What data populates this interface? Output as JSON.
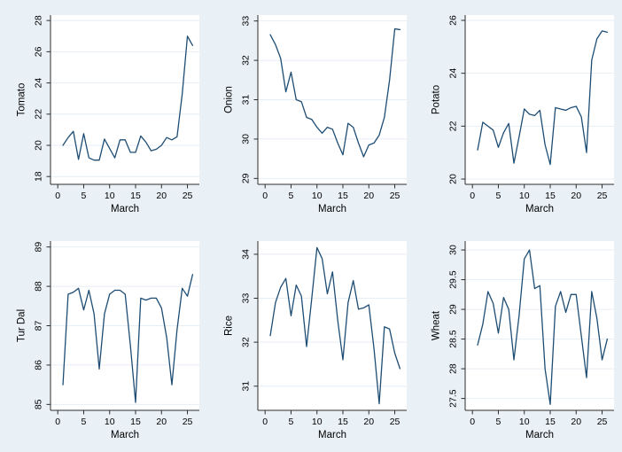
{
  "style": {
    "page_bg": "#e9f0f6",
    "plot_bg": "#ffffff",
    "grid_color": "#e7eef4",
    "line_color": "#1e4d74",
    "axis_color": "#2e2e2e",
    "text_color": "#000000"
  },
  "chart_data": [
    {
      "type": "line",
      "title": "",
      "ylabel": "Tomato",
      "xlabel": "March",
      "legend": "none",
      "grid": "horizontal",
      "x": [
        1,
        2,
        3,
        4,
        5,
        6,
        7,
        8,
        9,
        10,
        11,
        12,
        13,
        14,
        15,
        16,
        17,
        18,
        19,
        20,
        21,
        22,
        23,
        24,
        25,
        26
      ],
      "values": [
        20.0,
        20.5,
        20.9,
        19.1,
        20.75,
        19.2,
        19.05,
        19.05,
        20.4,
        19.8,
        19.2,
        20.35,
        20.35,
        19.55,
        19.55,
        20.6,
        20.2,
        19.65,
        19.75,
        20.0,
        20.5,
        20.35,
        20.55,
        23.3,
        27.0,
        26.4
      ],
      "yticks": [
        18,
        20,
        22,
        24,
        26,
        28
      ],
      "xticks": [
        0,
        5,
        10,
        15,
        20,
        25
      ],
      "ylim": [
        17.5,
        28.35
      ],
      "xlim": [
        -1.4,
        27.3
      ]
    },
    {
      "type": "line",
      "title": "",
      "ylabel": "Onion",
      "xlabel": "March",
      "legend": "none",
      "grid": "horizontal",
      "x": [
        1,
        2,
        3,
        4,
        5,
        6,
        7,
        8,
        9,
        10,
        11,
        12,
        13,
        14,
        15,
        16,
        17,
        18,
        19,
        20,
        21,
        22,
        23,
        24,
        25,
        26
      ],
      "values": [
        32.65,
        32.4,
        32.05,
        31.2,
        31.7,
        31.0,
        30.95,
        30.55,
        30.5,
        30.3,
        30.15,
        30.3,
        30.25,
        29.9,
        29.6,
        30.4,
        30.3,
        29.9,
        29.55,
        29.85,
        29.9,
        30.1,
        30.55,
        31.5,
        32.8,
        32.78
      ],
      "yticks": [
        29,
        30,
        31,
        32,
        33
      ],
      "xticks": [
        0,
        5,
        10,
        15,
        20,
        25
      ],
      "ylim": [
        28.85,
        33.15
      ],
      "xlim": [
        -1.4,
        27.3
      ]
    },
    {
      "type": "line",
      "title": "",
      "ylabel": "Potato",
      "xlabel": "March",
      "legend": "none",
      "grid": "horizontal",
      "x": [
        1,
        2,
        3,
        4,
        5,
        6,
        7,
        8,
        9,
        10,
        11,
        12,
        13,
        14,
        15,
        16,
        17,
        18,
        19,
        20,
        21,
        22,
        23,
        24,
        25,
        26
      ],
      "values": [
        21.1,
        22.15,
        22.0,
        21.85,
        21.2,
        21.75,
        22.1,
        20.6,
        21.6,
        22.65,
        22.45,
        22.4,
        22.6,
        21.3,
        20.55,
        22.7,
        22.65,
        22.6,
        22.7,
        22.75,
        22.35,
        21.0,
        24.5,
        25.3,
        25.6,
        25.55
      ],
      "yticks": [
        20,
        22,
        24,
        26
      ],
      "xticks": [
        0,
        5,
        10,
        15,
        20,
        25
      ],
      "ylim": [
        19.8,
        26.2
      ],
      "xlim": [
        -1.4,
        27.3
      ]
    },
    {
      "type": "line",
      "title": "",
      "ylabel": "Tur Dal",
      "xlabel": "March",
      "legend": "none",
      "grid": "horizontal",
      "x": [
        1,
        2,
        3,
        4,
        5,
        6,
        7,
        8,
        9,
        10,
        11,
        12,
        13,
        14,
        15,
        16,
        17,
        18,
        19,
        20,
        21,
        22,
        23,
        24,
        25,
        26
      ],
      "values": [
        85.5,
        87.8,
        87.85,
        87.95,
        87.4,
        87.9,
        87.3,
        85.9,
        87.3,
        87.8,
        87.9,
        87.9,
        87.8,
        86.5,
        85.05,
        87.7,
        87.65,
        87.7,
        87.7,
        87.45,
        86.7,
        85.5,
        86.9,
        87.95,
        87.75,
        88.3
      ],
      "yticks": [
        85,
        86,
        87,
        88,
        89
      ],
      "xticks": [
        0,
        5,
        10,
        15,
        20,
        25
      ],
      "ylim": [
        84.85,
        89.15
      ],
      "xlim": [
        -1.4,
        27.3
      ]
    },
    {
      "type": "line",
      "title": "",
      "ylabel": "Rice",
      "xlabel": "March",
      "legend": "none",
      "grid": "horizontal",
      "x": [
        1,
        2,
        3,
        4,
        5,
        6,
        7,
        8,
        9,
        10,
        11,
        12,
        13,
        14,
        15,
        16,
        17,
        18,
        19,
        20,
        21,
        22,
        23,
        24,
        25,
        26
      ],
      "values": [
        32.15,
        32.9,
        33.25,
        33.45,
        32.6,
        33.3,
        33.05,
        31.9,
        33.0,
        34.15,
        33.9,
        33.1,
        33.6,
        32.5,
        31.6,
        32.9,
        33.4,
        32.75,
        32.78,
        32.85,
        31.85,
        30.6,
        32.35,
        32.3,
        31.75,
        31.4
      ],
      "yticks": [
        31,
        32,
        33,
        34
      ],
      "xticks": [
        0,
        5,
        10,
        15,
        20,
        25
      ],
      "ylim": [
        30.45,
        34.3
      ],
      "xlim": [
        -1.4,
        27.3
      ]
    },
    {
      "type": "line",
      "title": "",
      "ylabel": "Wheat",
      "xlabel": "March",
      "legend": "none",
      "grid": "horizontal",
      "x": [
        1,
        2,
        3,
        4,
        5,
        6,
        7,
        8,
        9,
        10,
        11,
        12,
        13,
        14,
        15,
        16,
        17,
        18,
        19,
        20,
        21,
        22,
        23,
        24,
        25,
        26
      ],
      "values": [
        28.4,
        28.75,
        29.3,
        29.1,
        28.6,
        29.2,
        29.0,
        28.15,
        28.9,
        29.85,
        30.0,
        29.35,
        29.4,
        28.0,
        27.4,
        29.05,
        29.3,
        28.95,
        29.25,
        29.25,
        28.55,
        27.85,
        29.3,
        28.85,
        28.15,
        28.5
      ],
      "yticks": [
        27.5,
        28,
        28.5,
        29,
        29.5,
        30
      ],
      "xticks": [
        0,
        5,
        10,
        15,
        20,
        25
      ],
      "ylim": [
        27.3,
        30.15
      ],
      "xlim": [
        -1.4,
        27.3
      ]
    }
  ]
}
